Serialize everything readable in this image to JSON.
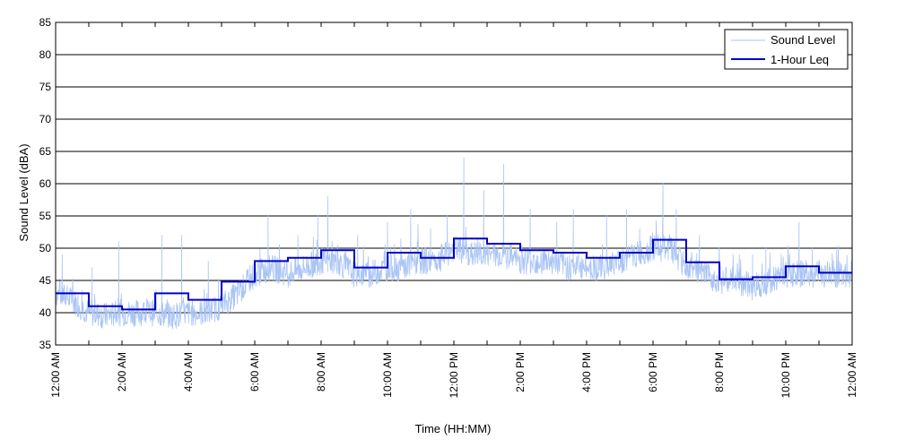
{
  "chart_data": {
    "type": "line",
    "title": "",
    "xlabel": "Time (HH:MM)",
    "ylabel": "Sound Level (dBA)",
    "ylim": [
      35,
      85
    ],
    "yticks": [
      35,
      40,
      45,
      50,
      55,
      60,
      65,
      70,
      75,
      80,
      85
    ],
    "xlim": [
      0,
      24
    ],
    "xticks": [
      {
        "hour": 0,
        "label": "12:00 AM"
      },
      {
        "hour": 2,
        "label": "2:00 AM"
      },
      {
        "hour": 4,
        "label": "4:00 AM"
      },
      {
        "hour": 6,
        "label": "6:00 AM"
      },
      {
        "hour": 8,
        "label": "8:00 AM"
      },
      {
        "hour": 10,
        "label": "10:00 AM"
      },
      {
        "hour": 12,
        "label": "12:00 PM"
      },
      {
        "hour": 14,
        "label": "2:00 PM"
      },
      {
        "hour": 16,
        "label": "4:00 PM"
      },
      {
        "hour": 18,
        "label": "6:00 PM"
      },
      {
        "hour": 20,
        "label": "8:00 PM"
      },
      {
        "hour": 22,
        "label": "10:00 PM"
      },
      {
        "hour": 24,
        "label": "12:00 AM"
      }
    ],
    "grid": "horizontal",
    "legend_position": "top-right",
    "series": [
      {
        "name": "Sound Level",
        "color": "#a9c4f5",
        "style": "thin-noisy",
        "x": [
          0,
          0.5,
          1,
          1.5,
          2,
          2.5,
          3,
          3.5,
          4,
          4.5,
          5,
          5.5,
          6,
          6.5,
          7,
          7.5,
          8,
          8.5,
          9,
          9.5,
          10,
          10.5,
          11,
          11.5,
          12,
          12.5,
          13,
          13.5,
          14,
          14.5,
          15,
          15.5,
          16,
          16.5,
          17,
          17.5,
          18,
          18.5,
          19,
          19.5,
          20,
          20.5,
          21,
          21.5,
          22,
          22.5,
          23,
          23.5,
          24
        ],
        "y": [
          43,
          42,
          40,
          39.5,
          40,
          40,
          40,
          39.5,
          40,
          40,
          41,
          43,
          46,
          47,
          46,
          47,
          48,
          48,
          46,
          46,
          47,
          47,
          48,
          48,
          50,
          49,
          49,
          49,
          48,
          48,
          48,
          47,
          47,
          47,
          48,
          49,
          50,
          50,
          47,
          46,
          45,
          45,
          44,
          45,
          46,
          46,
          46,
          46,
          46
        ],
        "spikes": [
          {
            "x": 0.2,
            "y": 49
          },
          {
            "x": 1.1,
            "y": 47
          },
          {
            "x": 1.9,
            "y": 51
          },
          {
            "x": 3.2,
            "y": 52
          },
          {
            "x": 3.8,
            "y": 52
          },
          {
            "x": 4.6,
            "y": 48
          },
          {
            "x": 6.4,
            "y": 55
          },
          {
            "x": 7.3,
            "y": 52
          },
          {
            "x": 7.9,
            "y": 55
          },
          {
            "x": 8.2,
            "y": 58
          },
          {
            "x": 9.1,
            "y": 52
          },
          {
            "x": 10.0,
            "y": 54
          },
          {
            "x": 10.7,
            "y": 56
          },
          {
            "x": 11.3,
            "y": 53
          },
          {
            "x": 11.8,
            "y": 55
          },
          {
            "x": 12.3,
            "y": 64
          },
          {
            "x": 12.9,
            "y": 59
          },
          {
            "x": 13.5,
            "y": 63
          },
          {
            "x": 14.3,
            "y": 56
          },
          {
            "x": 15.1,
            "y": 54
          },
          {
            "x": 15.6,
            "y": 56
          },
          {
            "x": 16.6,
            "y": 55
          },
          {
            "x": 17.2,
            "y": 56
          },
          {
            "x": 17.6,
            "y": 53
          },
          {
            "x": 18.3,
            "y": 60
          },
          {
            "x": 18.7,
            "y": 56
          },
          {
            "x": 19.4,
            "y": 52
          },
          {
            "x": 20.0,
            "y": 49
          },
          {
            "x": 20.6,
            "y": 49
          },
          {
            "x": 21.0,
            "y": 49
          },
          {
            "x": 21.4,
            "y": 50
          },
          {
            "x": 22.4,
            "y": 54
          },
          {
            "x": 22.8,
            "y": 50
          },
          {
            "x": 23.6,
            "y": 48
          }
        ]
      },
      {
        "name": "1-Hour Leq",
        "color": "#0000cc",
        "style": "step",
        "hours": [
          0,
          1,
          2,
          3,
          4,
          5,
          6,
          7,
          8,
          9,
          10,
          11,
          12,
          13,
          14,
          15,
          16,
          17,
          18,
          19,
          20,
          21,
          22,
          23
        ],
        "values": [
          43,
          41,
          40.5,
          43,
          42,
          44.8,
          48,
          48.5,
          49.7,
          47,
          49.3,
          48.5,
          51.5,
          50.7,
          49.7,
          49.3,
          48.5,
          49.3,
          51.3,
          47.8,
          45.2,
          45.5,
          47.2,
          46.2
        ]
      }
    ]
  }
}
